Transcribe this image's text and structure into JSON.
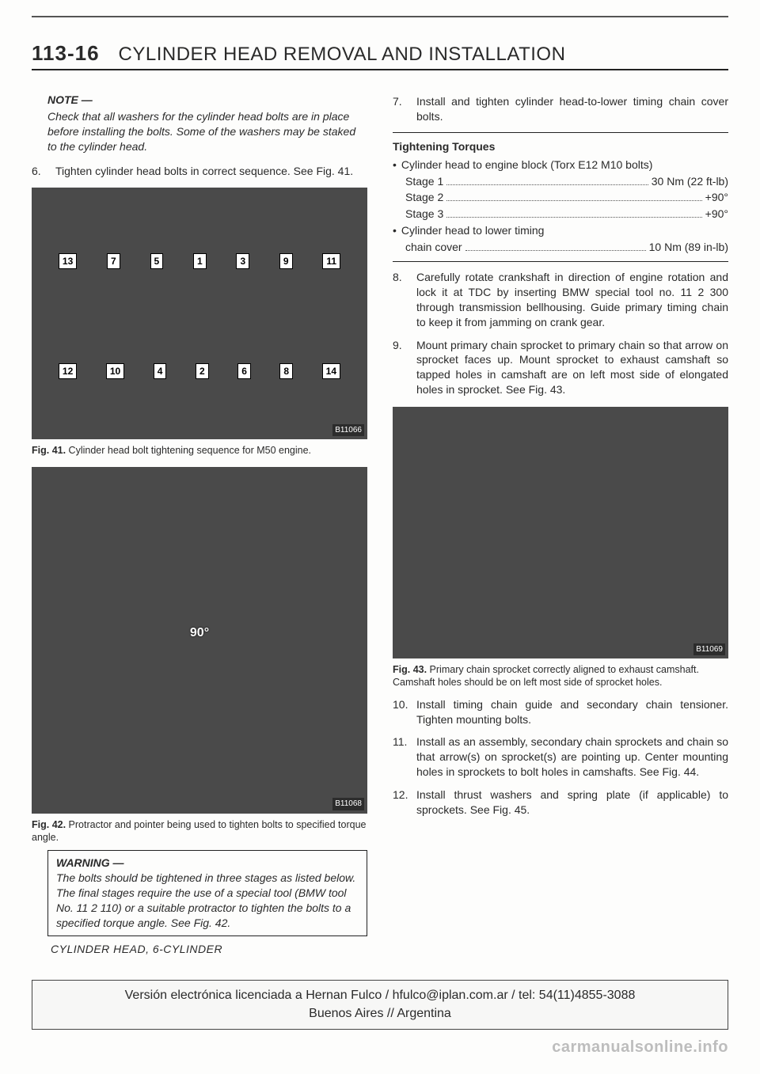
{
  "header": {
    "page_number": "113-16",
    "title": "CYLINDER HEAD REMOVAL AND INSTALLATION"
  },
  "left": {
    "note": {
      "title": "NOTE —",
      "text": "Check that all washers for the cylinder head bolts are in place before installing the bolts. Some of the washers may be staked to the cylinder head."
    },
    "step6": {
      "num": "6.",
      "text": "Tighten cylinder head bolts in correct sequence. See Fig. 41."
    },
    "fig41": {
      "tag": "B11066",
      "seq_top": [
        "13",
        "7",
        "5",
        "1",
        "3",
        "9",
        "11"
      ],
      "seq_bot": [
        "12",
        "10",
        "4",
        "2",
        "6",
        "8",
        "14"
      ],
      "caption_label": "Fig. 41.",
      "caption_text": " Cylinder head bolt tightening sequence for M50 engine."
    },
    "fig42": {
      "tag": "B11068",
      "angle": "90°",
      "caption_label": "Fig. 42.",
      "caption_text": " Protractor and pointer being used to tighten bolts to specified torque angle."
    },
    "warning": {
      "title": "WARNING —",
      "text": "The bolts should be tightened in three stages as listed below. The final stages require the use of a special tool (BMW tool No. 11 2 110) or a suitable protractor to tighten the bolts to a specified torque angle. See Fig. 42."
    },
    "footer": "CYLINDER HEAD, 6-CYLINDER"
  },
  "right": {
    "step7": {
      "num": "7.",
      "text": "Install and tighten cylinder head-to-lower timing chain cover bolts."
    },
    "torque_head": "Tightening Torques",
    "torque_items": [
      {
        "bullet": "•",
        "label": "Cylinder head to engine block (Torx E12 M10 bolts)",
        "value": ""
      },
      {
        "bullet": "",
        "label": "Stage 1",
        "value": "30 Nm (22 ft-lb)",
        "sub": true
      },
      {
        "bullet": "",
        "label": "Stage 2",
        "value": "+90°",
        "sub": true
      },
      {
        "bullet": "",
        "label": "Stage 3",
        "value": "+90°",
        "sub": true
      },
      {
        "bullet": "•",
        "label": "Cylinder head to lower timing",
        "value": ""
      },
      {
        "bullet": "",
        "label": "chain cover",
        "value": "10 Nm (89 in-lb)",
        "sub": true
      }
    ],
    "step8": {
      "num": "8.",
      "text": "Carefully rotate crankshaft in direction of engine rotation and lock it at TDC by inserting BMW special tool no. 11 2 300 through transmission bellhousing. Guide primary timing chain to keep it from jamming on crank gear."
    },
    "step9": {
      "num": "9.",
      "text": "Mount primary chain sprocket to primary chain so that arrow on sprocket faces up. Mount sprocket to exhaust camshaft so tapped holes in camshaft are on left most side of elongated holes in sprocket. See Fig. 43."
    },
    "fig43": {
      "tag": "B11069",
      "caption_label": "Fig. 43.",
      "caption_text": " Primary chain sprocket correctly aligned to exhaust camshaft. Camshaft holes should be on left most side of sprocket holes."
    },
    "step10": {
      "num": "10.",
      "text": "Install timing chain guide and secondary chain tensioner. Tighten mounting bolts."
    },
    "step11": {
      "num": "11.",
      "text": "Install as an assembly, secondary chain sprockets and chain so that arrow(s) on sprocket(s) are pointing up. Center mounting holes in sprockets to bolt holes in camshafts. See Fig. 44."
    },
    "step12": {
      "num": "12.",
      "text": "Install thrust washers and spring plate (if applicable) to sprockets. See Fig. 45."
    }
  },
  "license": {
    "line1": "Versión electrónica licenciada a Hernan Fulco / hfulco@iplan.com.ar / tel: 54(11)4855-3088",
    "line2": "Buenos Aires // Argentina"
  },
  "watermark": "carmanualsonline.info"
}
